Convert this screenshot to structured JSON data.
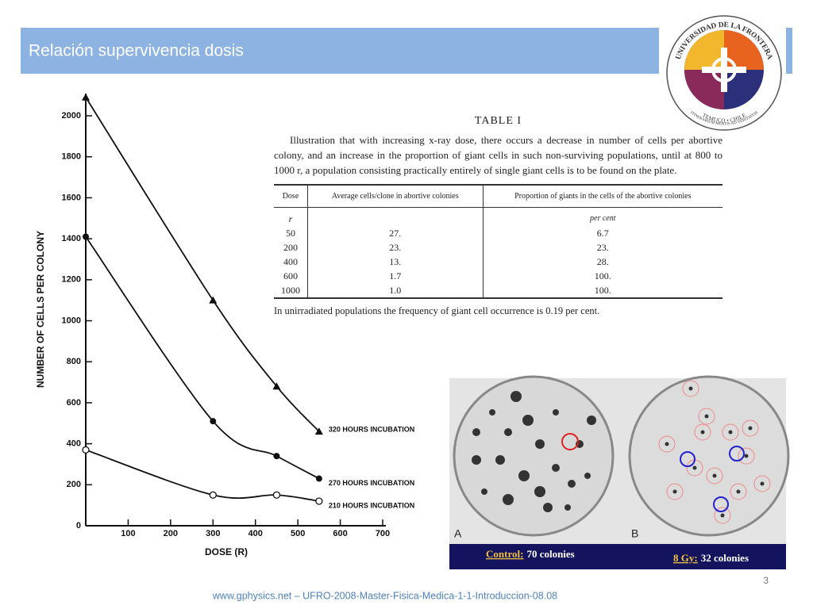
{
  "slide": {
    "title": "Relación supervivencia dosis",
    "page_number": "3",
    "footer": "www.gphysics.net – UFRO-2008-Master-Fisica-Medica-1-1-Introduccion-08.08",
    "logo": {
      "name": "UNIVERSIDAD DE LA FRONTERA",
      "city": "TEMUCO • CHILE",
      "motto": "ITINERARIUM MENTIS AD VERITATEM"
    }
  },
  "chart_data": {
    "type": "line",
    "xlabel": "DOSE (R)",
    "ylabel": "NUMBER OF CELLS PER COLONY",
    "x": [
      0,
      300,
      450,
      550
    ],
    "xlim": [
      0,
      700
    ],
    "xticks": [
      100,
      200,
      300,
      400,
      500,
      600,
      700
    ],
    "ylim": [
      0,
      2000
    ],
    "yticks": [
      0,
      200,
      400,
      600,
      800,
      1000,
      1200,
      1400,
      1600,
      1800,
      2000
    ],
    "series": [
      {
        "name": "320 HOURS INCUBATION",
        "color": "#111111",
        "marker": "triangle",
        "values": [
          2090,
          1100,
          680,
          460
        ]
      },
      {
        "name": "270 HOURS INCUBATION",
        "color": "#111111",
        "marker": "circle",
        "values": [
          1410,
          510,
          340,
          230
        ]
      },
      {
        "name": "210 HOURS INCUBATION",
        "color": "#111111",
        "marker": "open-circle",
        "values": [
          370,
          150,
          150,
          120
        ]
      }
    ]
  },
  "table": {
    "title": "TABLE I",
    "caption": "Illustration that with increasing x-ray dose, there occurs a decrease in number of cells per abortive colony, and an increase in the proportion of giant cells in such non-surviving populations, until at 800 to 1000 r, a population consisting practically entirely of single giant cells is to be found on the plate.",
    "columns": [
      "Dose",
      "Average cells/clone in abortive colonies",
      "Proportion of giants in the cells of the abortive colonies"
    ],
    "dose_unit": "r",
    "proportion_unit": "per cent",
    "rows": [
      [
        "50",
        "27.",
        "6.7"
      ],
      [
        "200",
        "23.",
        "23."
      ],
      [
        "400",
        "13.",
        "28."
      ],
      [
        "600",
        "1.7",
        "100."
      ],
      [
        "1000",
        "1.0",
        "100."
      ]
    ],
    "note": "In unirradiated populations the frequency of giant cell occurrence is 0.19 per cent."
  },
  "photo": {
    "panels": [
      {
        "letter": "A",
        "label": "Control:",
        "text": "70 colonies"
      },
      {
        "letter": "B",
        "label": "8 Gy:",
        "text": "32 colonies"
      }
    ]
  }
}
